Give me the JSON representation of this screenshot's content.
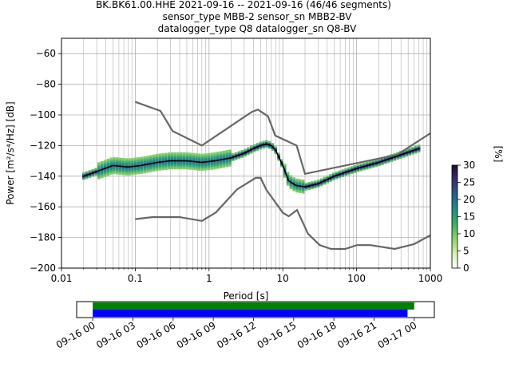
{
  "title_lines": [
    "BK.BK61.00.HHE   2021-09-16 -- 2021-09-16  (46/46 segments)",
    "sensor_type MBB-2 sensor_sn MBB2-BV",
    "datalogger_type Q8 datalogger_sn Q8-BV"
  ],
  "chart_data": [
    {
      "type": "heatmap",
      "subtype": "probabilistic-power-spectral-density",
      "xlabel": "Period [s]",
      "ylabel": "Power [m²/s⁴/Hz] [dB]",
      "x_scale": "log",
      "xlim": [
        0.01,
        1000
      ],
      "ylim": [
        -200,
        -50
      ],
      "x_ticks": [
        0.01,
        0.1,
        1,
        10,
        100,
        1000
      ],
      "x_tick_labels": [
        "0.01",
        "0.1",
        "1",
        "10",
        "100",
        "1000"
      ],
      "y_ticks": [
        -200,
        -180,
        -160,
        -140,
        -120,
        -100,
        -80,
        -60
      ],
      "y_tick_labels": [
        "−200",
        "−180",
        "−160",
        "−140",
        "−120",
        "−100",
        "−80",
        "−60"
      ],
      "grid": true,
      "colorbar": {
        "label": "[%]",
        "range": [
          0,
          30
        ],
        "ticks": [
          0,
          5,
          10,
          15,
          20,
          25,
          30
        ],
        "tick_labels": [
          "0",
          "5",
          "10",
          "15",
          "20",
          "25",
          "30"
        ],
        "colormap": [
          "#ffffff",
          "#d6efb0",
          "#8fd16a",
          "#3fae6a",
          "#1f8f83",
          "#2a5f8a",
          "#35306b",
          "#220a33"
        ]
      },
      "series": [
        {
          "name": "",
          "role": "mean",
          "color": "#000000",
          "x": [
            0.02,
            0.03,
            0.05,
            0.08,
            0.12,
            0.2,
            0.3,
            0.5,
            0.8,
            1.2,
            2,
            3,
            4,
            5,
            6,
            7,
            8,
            10,
            12,
            15,
            20,
            30,
            50,
            100,
            200,
            400,
            700
          ],
          "y": [
            -140,
            -137,
            -133,
            -134,
            -133,
            -131,
            -130,
            -130,
            -131,
            -130,
            -128,
            -125,
            -122,
            -120,
            -119,
            -120,
            -123,
            -133,
            -143,
            -146,
            -147,
            -145,
            -140,
            -135,
            -131,
            -126,
            -122
          ]
        },
        {
          "name": "",
          "role": "NHNM",
          "color": "#666666",
          "x": [
            0.1,
            0.22,
            0.32,
            0.8,
            3.8,
            4.6,
            6.3,
            7.9,
            15.4,
            20,
            354.8,
            1000
          ],
          "y": [
            -91.5,
            -97.4,
            -110.5,
            -120,
            -98,
            -96.5,
            -101,
            -113.5,
            -120,
            -138.5,
            -126,
            -112
          ]
        },
        {
          "name": "",
          "role": "NLNM",
          "color": "#666666",
          "x": [
            0.1,
            0.17,
            0.4,
            0.8,
            1.24,
            2.4,
            4.3,
            5,
            6,
            10,
            12,
            15.6,
            21.9,
            31.6,
            45,
            70,
            101,
            154,
            328,
            600,
            1000
          ],
          "y": [
            -168,
            -166.7,
            -166.7,
            -169.2,
            -163.7,
            -148.6,
            -141.1,
            -141.1,
            -149,
            -163.8,
            -166.2,
            -162.1,
            -177.5,
            -185,
            -187.5,
            -187.5,
            -185,
            -185,
            -187.5,
            -184.4,
            -178.6
          ]
        }
      ]
    },
    {
      "type": "timeline",
      "x_tick_labels": [
        "09-16 00",
        "09-16 03",
        "09-16 06",
        "09-16 09",
        "09-16 12",
        "09-16 15",
        "09-16 18",
        "09-16 21",
        "09-17 00"
      ],
      "x_range_hours": [
        -1.2,
        25.5
      ],
      "bars": [
        {
          "name": "",
          "color": "#008000",
          "start_hour": 0,
          "end_hour": 24
        },
        {
          "name": "",
          "color": "#0000ff",
          "start_hour": 0,
          "end_hour": 23.5
        }
      ]
    }
  ]
}
